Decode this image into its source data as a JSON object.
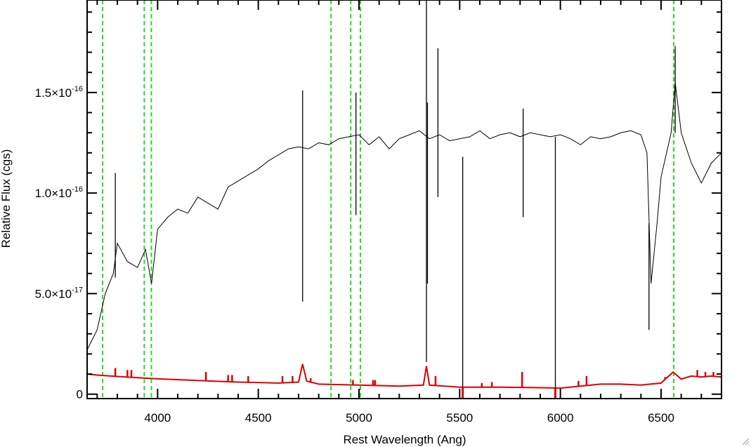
{
  "chart_data": {
    "type": "line",
    "xlabel": "Rest Wavelength (Ang)",
    "ylabel": "Relative Flux (cgs)",
    "xlim": [
      3650,
      6800
    ],
    "ylim": [
      -2.2e-18,
      1.96e-16
    ],
    "x_ticks": [
      {
        "value": 4000,
        "label": "4000"
      },
      {
        "value": 4500,
        "label": "4500"
      },
      {
        "value": 5000,
        "label": "5000"
      },
      {
        "value": 5500,
        "label": "5500"
      },
      {
        "value": 6000,
        "label": "6000"
      },
      {
        "value": 6500,
        "label": "6500"
      }
    ],
    "y_ticks": [
      {
        "value": 0,
        "mantissa": "0",
        "exponent": ""
      },
      {
        "value": 5e-17,
        "mantissa": "5.0×10",
        "exponent": "-17"
      },
      {
        "value": 1e-16,
        "mantissa": "1.0×10",
        "exponent": "-16"
      },
      {
        "value": 1.5e-16,
        "mantissa": "1.5×10",
        "exponent": "-16"
      }
    ],
    "line_markers": [
      3727,
      3934,
      3969,
      4861,
      4959,
      5007,
      6563
    ],
    "series": [
      {
        "color": "#000000",
        "points": [
          [
            3650,
            2.2e-17
          ],
          [
            3700,
            3.2e-17
          ],
          [
            3740,
            5e-17
          ],
          [
            3780,
            6e-17
          ],
          [
            3800,
            7.5e-17
          ],
          [
            3850,
            6.6e-17
          ],
          [
            3900,
            6.3e-17
          ],
          [
            3940,
            7.2e-17
          ],
          [
            3970,
            5.5e-17
          ],
          [
            4000,
            8.2e-17
          ],
          [
            4050,
            8.8e-17
          ],
          [
            4100,
            9.2e-17
          ],
          [
            4150,
            9e-17
          ],
          [
            4200,
            9.8e-17
          ],
          [
            4250,
            9.5e-17
          ],
          [
            4300,
            9.2e-17
          ],
          [
            4350,
            1.03e-16
          ],
          [
            4400,
            1.06e-16
          ],
          [
            4450,
            1.09e-16
          ],
          [
            4500,
            1.12e-16
          ],
          [
            4550,
            1.16e-16
          ],
          [
            4600,
            1.19e-16
          ],
          [
            4650,
            1.22e-16
          ],
          [
            4700,
            1.23e-16
          ],
          [
            4750,
            1.22e-16
          ],
          [
            4800,
            1.25e-16
          ],
          [
            4850,
            1.24e-16
          ],
          [
            4900,
            1.27e-16
          ],
          [
            4950,
            1.28e-16
          ],
          [
            5000,
            1.29e-16
          ],
          [
            5050,
            1.24e-16
          ],
          [
            5100,
            1.28e-16
          ],
          [
            5150,
            1.22e-16
          ],
          [
            5200,
            1.27e-16
          ],
          [
            5250,
            1.29e-16
          ],
          [
            5300,
            1.31e-16
          ],
          [
            5350,
            1.27e-16
          ],
          [
            5400,
            1.29e-16
          ],
          [
            5450,
            1.26e-16
          ],
          [
            5500,
            1.27e-16
          ],
          [
            5550,
            1.28e-16
          ],
          [
            5600,
            1.31e-16
          ],
          [
            5650,
            1.27e-16
          ],
          [
            5700,
            1.29e-16
          ],
          [
            5750,
            1.3e-16
          ],
          [
            5800,
            1.28e-16
          ],
          [
            5850,
            1.3e-16
          ],
          [
            5900,
            1.29e-16
          ],
          [
            5950,
            1.28e-16
          ],
          [
            6000,
            1.29e-16
          ],
          [
            6050,
            1.27e-16
          ],
          [
            6100,
            1.24e-16
          ],
          [
            6150,
            1.28e-16
          ],
          [
            6200,
            1.27e-16
          ],
          [
            6250,
            1.28e-16
          ],
          [
            6300,
            1.3e-16
          ],
          [
            6350,
            1.31e-16
          ],
          [
            6400,
            1.29e-16
          ],
          [
            6430,
            1.2e-16
          ],
          [
            6450,
            5.5e-17
          ],
          [
            6480,
            8.5e-17
          ],
          [
            6500,
            1.08e-16
          ],
          [
            6550,
            1.3e-16
          ],
          [
            6570,
            1.55e-16
          ],
          [
            6600,
            1.3e-16
          ],
          [
            6650,
            1.15e-16
          ],
          [
            6700,
            1.05e-16
          ],
          [
            6750,
            1.15e-16
          ],
          [
            6800,
            1.2e-16
          ]
        ]
      },
      {
        "color": "#dd0000",
        "points": [
          [
            3650,
            1e-17
          ],
          [
            3700,
            9.5e-18
          ],
          [
            3800,
            8.8e-18
          ],
          [
            3900,
            8.2e-18
          ],
          [
            4000,
            7.6e-18
          ],
          [
            4200,
            6.8e-18
          ],
          [
            4400,
            6e-18
          ],
          [
            4600,
            5.5e-18
          ],
          [
            4700,
            6e-18
          ],
          [
            4720,
            1.5e-17
          ],
          [
            4740,
            6.5e-18
          ],
          [
            4800,
            5e-18
          ],
          [
            5000,
            4.5e-18
          ],
          [
            5200,
            4e-18
          ],
          [
            5320,
            4.5e-18
          ],
          [
            5335,
            1.4e-17
          ],
          [
            5350,
            4.5e-18
          ],
          [
            5500,
            3.5e-18
          ],
          [
            5700,
            3.5e-18
          ],
          [
            5900,
            3.2e-18
          ],
          [
            6000,
            3e-18
          ],
          [
            6100,
            4e-18
          ],
          [
            6200,
            5e-18
          ],
          [
            6300,
            5e-18
          ],
          [
            6400,
            4.5e-18
          ],
          [
            6500,
            5.5e-18
          ],
          [
            6560,
            1.1e-17
          ],
          [
            6600,
            7.5e-18
          ],
          [
            6650,
            9e-18
          ],
          [
            6700,
            8.5e-18
          ],
          [
            6750,
            9e-18
          ],
          [
            6800,
            8.5e-18
          ]
        ]
      }
    ],
    "spikes": [
      {
        "x": 3790,
        "y1": 5.8e-17,
        "y2": 1.1e-16
      },
      {
        "x": 4720,
        "y1": 4.6e-17,
        "y2": 1.51e-16
      },
      {
        "x": 4985,
        "y1": 8.9e-17,
        "y2": 1.5e-16
      },
      {
        "x": 5335,
        "y1": 1.6e-17,
        "y2": 1.96e-16
      },
      {
        "x": 5340,
        "y1": 5.5e-17,
        "y2": 1.45e-16
      },
      {
        "x": 5392,
        "y1": 9.8e-17,
        "y2": 1.72e-16
      },
      {
        "x": 5515,
        "y1": -2.2e-18,
        "y2": 1.18e-16
      },
      {
        "x": 5815,
        "y1": 8.8e-17,
        "y2": 1.42e-16
      },
      {
        "x": 5975,
        "y1": -2.2e-18,
        "y2": 1.28e-16
      },
      {
        "x": 6440,
        "y1": 3.2e-17,
        "y2": 8.5e-17
      },
      {
        "x": 6570,
        "y1": 1.3e-16,
        "y2": 1.73e-16
      }
    ],
    "error_spikes": [
      {
        "x": 3790,
        "y2": 1.3e-17
      },
      {
        "x": 3850,
        "y2": 1.2e-17
      },
      {
        "x": 3870,
        "y2": 1.2e-17
      },
      {
        "x": 4240,
        "y2": 1.1e-17
      },
      {
        "x": 4350,
        "y2": 9.5e-18
      },
      {
        "x": 4370,
        "y2": 9.5e-18
      },
      {
        "x": 4450,
        "y2": 9e-18
      },
      {
        "x": 4620,
        "y2": 9e-18
      },
      {
        "x": 4670,
        "y2": 9e-18
      },
      {
        "x": 4760,
        "y2": 8e-18
      },
      {
        "x": 4970,
        "y2": 7e-18
      },
      {
        "x": 5070,
        "y2": 7e-18
      },
      {
        "x": 5080,
        "y2": 7e-18
      },
      {
        "x": 5380,
        "y2": 9e-18
      },
      {
        "x": 5610,
        "y2": 5.5e-18
      },
      {
        "x": 5660,
        "y2": 6e-18
      },
      {
        "x": 5810,
        "y2": 1.1e-17
      },
      {
        "x": 6090,
        "y2": 6.5e-18
      },
      {
        "x": 6130,
        "y2": 9e-18
      },
      {
        "x": 6520,
        "y2": 8.5e-18
      },
      {
        "x": 6680,
        "y2": 1.2e-17
      },
      {
        "x": 6720,
        "y2": 1.1e-17
      },
      {
        "x": 6760,
        "y2": 1.1e-17
      }
    ],
    "error_dips": [
      5515,
      5975
    ]
  }
}
